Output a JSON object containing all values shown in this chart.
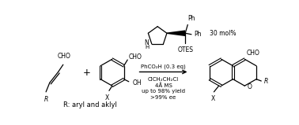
{
  "background_color": "#ffffff",
  "figsize": [
    3.78,
    1.59
  ],
  "dpi": 100,
  "catalyst_label": "30 mol%",
  "reagents_line1": "PhCO₂H (0.3 eq)",
  "reagents_line2": "ClCH₂CH₂Cl",
  "reagents_line3": "4Å MS",
  "reagents_line4": "up to 98% yield",
  "reagents_line5": ">99% ee",
  "r_label": "R: aryl and aklyl",
  "text_color": "#000000",
  "line_color": "#000000",
  "lw": 0.9,
  "fs_tiny": 5.0,
  "fs_small": 5.5,
  "fs_med": 6.5,
  "fs_label": 6.0
}
